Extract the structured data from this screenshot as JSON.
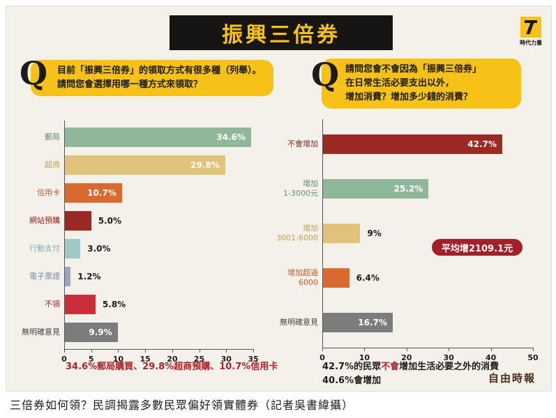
{
  "title": "振興三倍券",
  "logo": {
    "text": "時代力量"
  },
  "left_question": {
    "letter": "Q",
    "lines": [
      "目前「振興三倍券」的領取方式有很多種（列舉）。",
      "請問您會選擇用哪一種方式來領取？"
    ]
  },
  "right_question": {
    "letter": "Q",
    "lines": [
      "請問您會不會因為「振興三倍券」",
      "在日常生活必要支出以外，",
      "增加消費？增加多少錢的消費？"
    ]
  },
  "average_badge": "平均增2109.1元",
  "source_mark": "自由時報",
  "caption": "三倍券如何領？民調揭露多數民眾偏好領實體券（記者吳書緯攝）",
  "colors": {
    "title_bg": "#161513",
    "title_fg": "#f6c218",
    "banner": "#f6c218",
    "highlight": "#b0202a"
  },
  "chart_data": [
    {
      "type": "bar",
      "orientation": "horizontal",
      "xlim": [
        0,
        35
      ],
      "ticks": [
        0,
        5,
        10,
        15,
        20,
        25,
        30,
        35
      ],
      "categories": [
        "郵局",
        "超商",
        "信用卡",
        "網站預購",
        "行動支付",
        "電子票證",
        "不領",
        "無明確意見"
      ],
      "values": [
        34.6,
        29.8,
        10.7,
        5.0,
        3.0,
        1.2,
        5.8,
        9.9
      ],
      "value_labels": [
        "34.6%",
        "29.8%",
        "10.7%",
        "5.0%",
        "3.0%",
        "1.2%",
        "5.8%",
        "9.9%"
      ],
      "colors": [
        "#8fb89a",
        "#e1c27a",
        "#d9692f",
        "#9b2a25",
        "#9fc9c6",
        "#9ea4c4",
        "#c9303c",
        "#7c7c7c"
      ],
      "label_colors": [
        "#5f8f6c",
        "#c9a04d",
        "#c55a26",
        "#8a2622",
        "#7fb2ae",
        "#7c84a8",
        "#b0202a",
        "#444444"
      ],
      "inside_label": [
        true,
        true,
        true,
        false,
        false,
        false,
        false,
        true
      ],
      "summary": {
        "part1": "34.6%郵局購買、",
        "part2": "29.8%超商預購、",
        "part3": "10.7%信用卡"
      }
    },
    {
      "type": "bar",
      "orientation": "horizontal",
      "xlim": [
        0,
        50
      ],
      "ticks": [
        0,
        10,
        20,
        30,
        40,
        50
      ],
      "categories": [
        "不會增加",
        "增加\n1-3000元",
        "增加\n3001-6000",
        "增加超過\n6000",
        "無明確意見"
      ],
      "values": [
        42.7,
        25.2,
        9,
        6.4,
        16.7
      ],
      "value_labels": [
        "42.7%",
        "25.2%",
        "9%",
        "6.4%",
        "16.7%"
      ],
      "colors": [
        "#9b2a25",
        "#8fb89a",
        "#e1c27a",
        "#d9692f",
        "#7c7c7c"
      ],
      "label_colors": [
        "#8a2622",
        "#5f8f6c",
        "#c9a04d",
        "#c55a26",
        "#444444"
      ],
      "inside_label": [
        true,
        true,
        false,
        false,
        true
      ],
      "summary": {
        "part1": "42.7%的民眾",
        "part2": "不會",
        "part3": "增加生活必要之外的消費",
        "part4": "40.6%會增加"
      }
    }
  ]
}
